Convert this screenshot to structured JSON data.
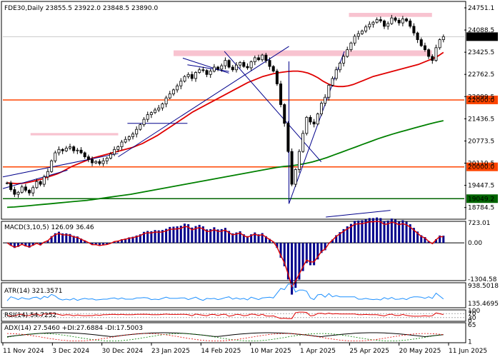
{
  "chart_data": {
    "type": "candlestick",
    "symbol_header": "FDE30,Daily  23855.5 23922.0 23848.5 23890.0",
    "price_axis": {
      "ticks": [
        "24751.1",
        "24088.5",
        "23425.5",
        "22762.5",
        "22099.5",
        "21436.5",
        "20773.5",
        "20110.5",
        "19447.5",
        "18784.5"
      ],
      "tick_values": [
        24751.1,
        24088.5,
        23425.5,
        22762.5,
        22099.5,
        21436.5,
        20773.5,
        20110.5,
        19447.5,
        18784.5
      ],
      "current_price": "23890.0",
      "range": [
        18500,
        24900
      ]
    },
    "horizontal_levels": [
      {
        "label": "22000.0",
        "value": 22000.0,
        "color": "#ff4500"
      },
      {
        "label": "20000.0",
        "value": 20000.0,
        "color": "#ff4500"
      },
      {
        "label": "19049.2",
        "value": 19049.2,
        "color": "#006400"
      }
    ],
    "zones": [
      {
        "from": 23310,
        "to": 23480,
        "start": 0.37,
        "end": 0.93
      },
      {
        "from": 24480,
        "to": 24600,
        "start": 0.75,
        "end": 0.93
      },
      {
        "from": 20940,
        "to": 21010,
        "start": 0.06,
        "end": 0.25
      }
    ],
    "x_axis_labels": [
      "11 Nov 2024",
      "3 Dec 2024",
      "30 Dec 2024",
      "23 Jan 2025",
      "14 Feb 2025",
      "10 Mar 2025",
      "1 Apr 2025",
      "25 Apr 2025",
      "20 May 2025",
      "11 Jun 2025"
    ],
    "close_series": [
      19520,
      19320,
      19180,
      19240,
      19400,
      19300,
      19220,
      19380,
      19560,
      19480,
      19700,
      19860,
      20180,
      20420,
      20520,
      20480,
      20560,
      20600,
      20480,
      20500,
      20420,
      20300,
      20220,
      20120,
      20160,
      20100,
      20180,
      20260,
      20380,
      20520,
      20600,
      20740,
      20820,
      20900,
      20980,
      21120,
      21260,
      21420,
      21560,
      21620,
      21700,
      21760,
      21880,
      22060,
      22180,
      22300,
      22420,
      22560,
      22700,
      22760,
      22640,
      22820,
      22900,
      22880,
      22760,
      22860,
      22980,
      22920,
      23020,
      23180,
      22980,
      22900,
      23040,
      23120,
      23000,
      22960,
      23140,
      23260,
      23200,
      23340,
      23180,
      23000,
      22860,
      22480,
      21860,
      21300,
      20460,
      19480,
      19920,
      20460,
      21000,
      21480,
      21340,
      21280,
      21580,
      21900,
      22080,
      22440,
      22640,
      22900,
      23100,
      23300,
      23500,
      23700,
      23900,
      23980,
      24060,
      24180,
      24260,
      24320,
      24400,
      24360,
      24200,
      24280,
      24450,
      24380,
      24300,
      24420,
      24360,
      24200,
      24000,
      23800,
      23620,
      23500,
      23300,
      23180,
      23560,
      23800,
      23890
    ],
    "ma_red": [
      19520,
      19510,
      19500,
      19510,
      19530,
      19560,
      19600,
      19640,
      19690,
      19740,
      19790,
      19860,
      19940,
      20020,
      20080,
      20140,
      20200,
      20260,
      20300,
      20340,
      20380,
      20420,
      20460,
      20500,
      20540,
      20580,
      20640,
      20700,
      20780,
      20860,
      20940,
      21040,
      21140,
      21240,
      21340,
      21440,
      21540,
      21640,
      21720,
      21800,
      21880,
      21960,
      22040,
      22120,
      22200,
      22280,
      22360,
      22440,
      22520,
      22580,
      22640,
      22700,
      22740,
      22780,
      22810,
      22830,
      22850,
      22860,
      22860,
      22840,
      22800,
      22740,
      22660,
      22560,
      22480,
      22420,
      22400,
      22400,
      22420,
      22460,
      22520,
      22580,
      22640,
      22700,
      22740,
      22780,
      22820,
      22860,
      22900,
      22940,
      22980,
      23020,
      23060,
      23120,
      23180,
      23240,
      23320,
      23420
    ],
    "ma_green": [
      18790,
      18800,
      18820,
      18840,
      18860,
      18880,
      18900,
      18920,
      18940,
      18960,
      18980,
      19000,
      19030,
      19060,
      19090,
      19120,
      19150,
      19180,
      19220,
      19260,
      19300,
      19340,
      19380,
      19420,
      19460,
      19500,
      19540,
      19580,
      19620,
      19660,
      19700,
      19740,
      19780,
      19820,
      19860,
      19900,
      19940,
      19980,
      20010,
      20030,
      20060,
      20100,
      20150,
      20210,
      20280,
      20360,
      20440,
      20520,
      20600,
      20680,
      20760,
      20840,
      20910,
      20980,
      21040,
      21100,
      21160,
      21220,
      21280,
      21330,
      21380
    ],
    "indicators": [
      {
        "name": "MACD",
        "title": "MACD(3,10,5) 126.09 36.46",
        "ticks": [
          "723.01",
          "0.00",
          "-1304.58"
        ]
      },
      {
        "name": "ATR",
        "title": "ATR(14) 321.3571",
        "ticks": [
          "938.5018",
          "135.4695"
        ]
      },
      {
        "name": "RSI",
        "title": "RSI(14) 54.7252",
        "ticks": [
          "100",
          "70",
          "30",
          "0"
        ]
      },
      {
        "name": "ADX",
        "title": "ADX(14) 27.5460 +DI:27.6884 -DI:17.5003",
        "ticks": [
          "65",
          "1"
        ]
      }
    ],
    "colors": {
      "up": "#000000",
      "down": "#000000",
      "ma_fast": "#e00000",
      "ma_slow": "#008000",
      "zone": "#f7b8c8",
      "trend": "#00008b",
      "macd_hist": "#00008b",
      "macd_signal": "#e00000",
      "atr": "#1e90ff",
      "rsi": "#e00000",
      "adx": "#000000",
      "plus_di": "#008000",
      "minus_di": "#e00000"
    }
  }
}
